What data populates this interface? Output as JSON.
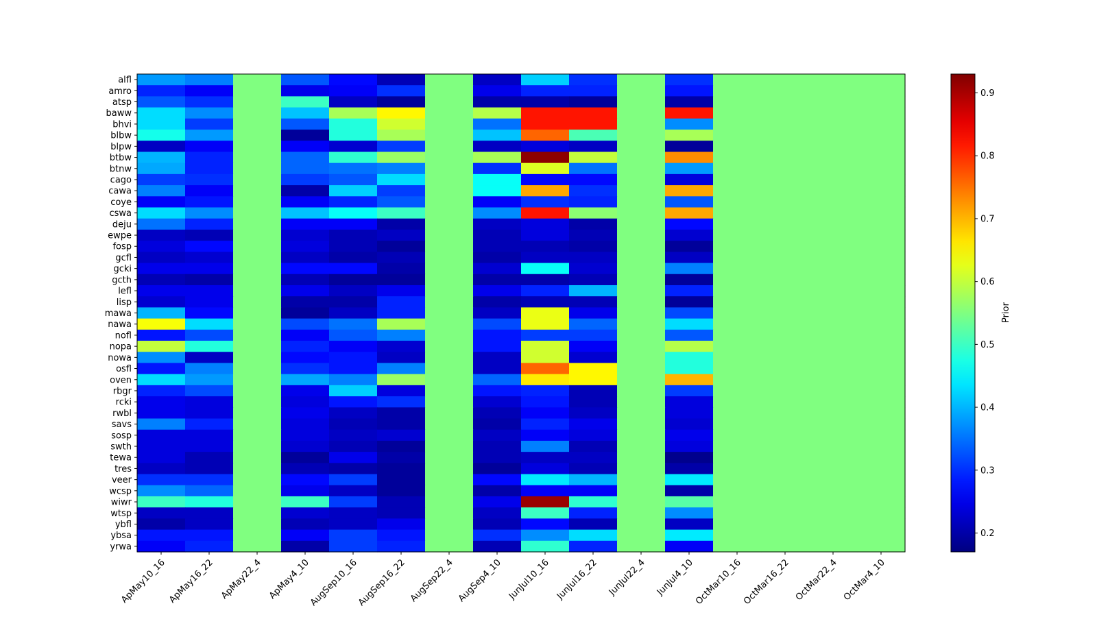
{
  "chart_data": {
    "type": "heatmap",
    "colormap": "jet",
    "title": "",
    "xlabel": "",
    "ylabel": "",
    "colorbar_label": "Prior",
    "colorbar_range": [
      0.17,
      0.93
    ],
    "colorbar_ticks": [
      "0.2",
      "0.3",
      "0.4",
      "0.5",
      "0.6",
      "0.7",
      "0.8",
      "0.9"
    ],
    "x_labels": [
      "ApMay10_16",
      "ApMay16_22",
      "ApMay22_4",
      "ApMay4_10",
      "AugSep10_16",
      "AugSep16_22",
      "AugSep22_4",
      "AugSep4_10",
      "JunJul10_16",
      "JunJul16_22",
      "JunJul22_4",
      "JunJul4_10",
      "OctMar10_16",
      "OctMar16_22",
      "OctMar22_4",
      "OctMar4_10"
    ],
    "y_labels": [
      "alfl",
      "amro",
      "atsp",
      "baww",
      "bhvi",
      "blbw",
      "blpw",
      "btbw",
      "btnw",
      "cago",
      "cawa",
      "coye",
      "cswa",
      "deju",
      "ewpe",
      "fosp",
      "gcfl",
      "gcki",
      "gcth",
      "lefl",
      "lisp",
      "mawa",
      "nawa",
      "nofl",
      "nopa",
      "nowa",
      "osfl",
      "oven",
      "rbgr",
      "rcki",
      "rwbl",
      "savs",
      "sosp",
      "swth",
      "tewa",
      "tres",
      "veer",
      "wcsp",
      "wiwr",
      "wtsp",
      "ybfl",
      "ybsa",
      "yrwa"
    ],
    "values": [
      [
        0.38,
        0.36,
        0.55,
        0.33,
        0.27,
        0.21,
        0.55,
        0.22,
        0.42,
        0.3,
        0.55,
        0.3,
        0.55,
        0.55,
        0.55,
        0.55
      ],
      [
        0.29,
        0.26,
        0.55,
        0.25,
        0.26,
        0.3,
        0.55,
        0.25,
        0.29,
        0.29,
        0.55,
        0.28,
        0.55,
        0.55,
        0.55,
        0.55
      ],
      [
        0.33,
        0.3,
        0.55,
        0.5,
        0.22,
        0.19,
        0.55,
        0.2,
        0.2,
        0.19,
        0.55,
        0.2,
        0.55,
        0.55,
        0.55,
        0.55
      ],
      [
        0.43,
        0.37,
        0.55,
        0.41,
        0.58,
        0.65,
        0.55,
        0.59,
        0.82,
        0.82,
        0.55,
        0.82,
        0.55,
        0.55,
        0.55,
        0.55
      ],
      [
        0.43,
        0.31,
        0.55,
        0.33,
        0.48,
        0.61,
        0.55,
        0.35,
        0.82,
        0.82,
        0.55,
        0.37,
        0.55,
        0.55,
        0.55,
        0.55
      ],
      [
        0.47,
        0.38,
        0.55,
        0.19,
        0.48,
        0.58,
        0.55,
        0.41,
        0.76,
        0.51,
        0.55,
        0.58,
        0.55,
        0.55,
        0.55,
        0.55
      ],
      [
        0.22,
        0.26,
        0.55,
        0.26,
        0.23,
        0.31,
        0.55,
        0.22,
        0.24,
        0.22,
        0.55,
        0.19,
        0.55,
        0.55,
        0.55,
        0.55
      ],
      [
        0.4,
        0.29,
        0.55,
        0.34,
        0.49,
        0.57,
        0.55,
        0.58,
        0.92,
        0.6,
        0.55,
        0.73,
        0.55,
        0.55,
        0.55,
        0.55
      ],
      [
        0.39,
        0.29,
        0.55,
        0.34,
        0.35,
        0.36,
        0.55,
        0.3,
        0.62,
        0.35,
        0.55,
        0.38,
        0.55,
        0.55,
        0.55,
        0.55
      ],
      [
        0.31,
        0.3,
        0.55,
        0.31,
        0.33,
        0.43,
        0.55,
        0.46,
        0.27,
        0.27,
        0.55,
        0.24,
        0.55,
        0.55,
        0.55,
        0.55
      ],
      [
        0.36,
        0.26,
        0.55,
        0.2,
        0.42,
        0.31,
        0.55,
        0.46,
        0.71,
        0.3,
        0.55,
        0.71,
        0.55,
        0.55,
        0.55,
        0.55
      ],
      [
        0.26,
        0.28,
        0.55,
        0.26,
        0.29,
        0.33,
        0.55,
        0.26,
        0.3,
        0.29,
        0.55,
        0.33,
        0.55,
        0.55,
        0.55,
        0.55
      ],
      [
        0.43,
        0.37,
        0.55,
        0.41,
        0.46,
        0.5,
        0.55,
        0.37,
        0.82,
        0.56,
        0.55,
        0.71,
        0.55,
        0.55,
        0.55,
        0.55
      ],
      [
        0.35,
        0.29,
        0.55,
        0.26,
        0.26,
        0.2,
        0.55,
        0.22,
        0.24,
        0.2,
        0.55,
        0.27,
        0.55,
        0.55,
        0.55,
        0.55
      ],
      [
        0.22,
        0.21,
        0.55,
        0.23,
        0.21,
        0.22,
        0.55,
        0.21,
        0.24,
        0.21,
        0.55,
        0.23,
        0.55,
        0.55,
        0.55,
        0.55
      ],
      [
        0.24,
        0.27,
        0.55,
        0.24,
        0.21,
        0.19,
        0.55,
        0.21,
        0.21,
        0.2,
        0.55,
        0.19,
        0.55,
        0.55,
        0.55,
        0.55
      ],
      [
        0.22,
        0.23,
        0.55,
        0.22,
        0.2,
        0.21,
        0.55,
        0.2,
        0.22,
        0.22,
        0.55,
        0.22,
        0.55,
        0.55,
        0.55,
        0.55
      ],
      [
        0.25,
        0.25,
        0.55,
        0.27,
        0.27,
        0.2,
        0.55,
        0.23,
        0.46,
        0.23,
        0.55,
        0.36,
        0.55,
        0.55,
        0.55,
        0.55
      ],
      [
        0.21,
        0.2,
        0.55,
        0.21,
        0.19,
        0.19,
        0.55,
        0.2,
        0.2,
        0.21,
        0.55,
        0.19,
        0.55,
        0.55,
        0.55,
        0.55
      ],
      [
        0.25,
        0.25,
        0.55,
        0.25,
        0.22,
        0.25,
        0.55,
        0.25,
        0.29,
        0.4,
        0.55,
        0.29,
        0.55,
        0.55,
        0.55,
        0.55
      ],
      [
        0.23,
        0.25,
        0.55,
        0.2,
        0.2,
        0.29,
        0.55,
        0.2,
        0.21,
        0.21,
        0.55,
        0.19,
        0.55,
        0.55,
        0.55,
        0.55
      ],
      [
        0.4,
        0.27,
        0.55,
        0.19,
        0.22,
        0.29,
        0.55,
        0.22,
        0.63,
        0.25,
        0.55,
        0.32,
        0.55,
        0.55,
        0.55,
        0.55
      ],
      [
        0.64,
        0.43,
        0.55,
        0.32,
        0.35,
        0.58,
        0.55,
        0.32,
        0.63,
        0.34,
        0.55,
        0.43,
        0.55,
        0.55,
        0.55,
        0.55
      ],
      [
        0.28,
        0.32,
        0.55,
        0.26,
        0.33,
        0.36,
        0.55,
        0.28,
        0.31,
        0.31,
        0.55,
        0.33,
        0.55,
        0.55,
        0.55,
        0.55
      ],
      [
        0.6,
        0.48,
        0.55,
        0.29,
        0.26,
        0.23,
        0.55,
        0.28,
        0.61,
        0.26,
        0.55,
        0.59,
        0.55,
        0.55,
        0.55,
        0.55
      ],
      [
        0.37,
        0.22,
        0.55,
        0.27,
        0.28,
        0.22,
        0.55,
        0.22,
        0.61,
        0.23,
        0.55,
        0.48,
        0.55,
        0.55,
        0.55,
        0.55
      ],
      [
        0.28,
        0.36,
        0.55,
        0.3,
        0.28,
        0.36,
        0.55,
        0.22,
        0.76,
        0.65,
        0.55,
        0.48,
        0.55,
        0.55,
        0.55,
        0.55
      ],
      [
        0.43,
        0.38,
        0.55,
        0.39,
        0.36,
        0.57,
        0.55,
        0.34,
        0.66,
        0.65,
        0.55,
        0.7,
        0.55,
        0.55,
        0.55,
        0.55
      ],
      [
        0.29,
        0.32,
        0.55,
        0.25,
        0.42,
        0.24,
        0.55,
        0.28,
        0.29,
        0.21,
        0.55,
        0.31,
        0.55,
        0.55,
        0.55,
        0.55
      ],
      [
        0.25,
        0.24,
        0.55,
        0.24,
        0.28,
        0.3,
        0.55,
        0.23,
        0.28,
        0.21,
        0.55,
        0.24,
        0.55,
        0.55,
        0.55,
        0.55
      ],
      [
        0.25,
        0.24,
        0.55,
        0.25,
        0.22,
        0.2,
        0.55,
        0.21,
        0.26,
        0.22,
        0.55,
        0.24,
        0.55,
        0.55,
        0.55,
        0.55
      ],
      [
        0.36,
        0.29,
        0.55,
        0.24,
        0.21,
        0.2,
        0.55,
        0.2,
        0.29,
        0.25,
        0.55,
        0.23,
        0.55,
        0.55,
        0.55,
        0.55
      ],
      [
        0.24,
        0.24,
        0.55,
        0.24,
        0.22,
        0.23,
        0.55,
        0.22,
        0.26,
        0.24,
        0.55,
        0.25,
        0.55,
        0.55,
        0.55,
        0.55
      ],
      [
        0.24,
        0.24,
        0.55,
        0.23,
        0.21,
        0.19,
        0.55,
        0.21,
        0.36,
        0.21,
        0.55,
        0.24,
        0.55,
        0.55,
        0.55,
        0.55
      ],
      [
        0.24,
        0.21,
        0.55,
        0.19,
        0.25,
        0.2,
        0.55,
        0.21,
        0.22,
        0.22,
        0.55,
        0.18,
        0.55,
        0.55,
        0.55,
        0.55
      ],
      [
        0.22,
        0.21,
        0.55,
        0.21,
        0.2,
        0.19,
        0.55,
        0.19,
        0.24,
        0.21,
        0.55,
        0.2,
        0.55,
        0.55,
        0.55,
        0.55
      ],
      [
        0.3,
        0.3,
        0.55,
        0.27,
        0.31,
        0.19,
        0.55,
        0.27,
        0.44,
        0.4,
        0.55,
        0.44,
        0.55,
        0.55,
        0.55,
        0.55
      ],
      [
        0.37,
        0.34,
        0.55,
        0.25,
        0.22,
        0.19,
        0.55,
        0.2,
        0.26,
        0.26,
        0.55,
        0.2,
        0.55,
        0.55,
        0.55,
        0.55
      ],
      [
        0.5,
        0.48,
        0.55,
        0.5,
        0.31,
        0.21,
        0.55,
        0.25,
        0.91,
        0.49,
        0.55,
        0.52,
        0.55,
        0.55,
        0.55,
        0.55
      ],
      [
        0.22,
        0.22,
        0.55,
        0.23,
        0.22,
        0.21,
        0.55,
        0.22,
        0.5,
        0.29,
        0.55,
        0.37,
        0.55,
        0.55,
        0.55,
        0.55
      ],
      [
        0.2,
        0.22,
        0.55,
        0.21,
        0.22,
        0.25,
        0.55,
        0.21,
        0.27,
        0.21,
        0.55,
        0.22,
        0.55,
        0.55,
        0.55,
        0.55
      ],
      [
        0.28,
        0.28,
        0.55,
        0.26,
        0.31,
        0.28,
        0.55,
        0.3,
        0.37,
        0.43,
        0.55,
        0.44,
        0.55,
        0.55,
        0.55,
        0.55
      ],
      [
        0.26,
        0.29,
        0.55,
        0.2,
        0.31,
        0.29,
        0.55,
        0.21,
        0.49,
        0.29,
        0.55,
        0.26,
        0.55,
        0.55,
        0.55,
        0.55
      ]
    ]
  }
}
